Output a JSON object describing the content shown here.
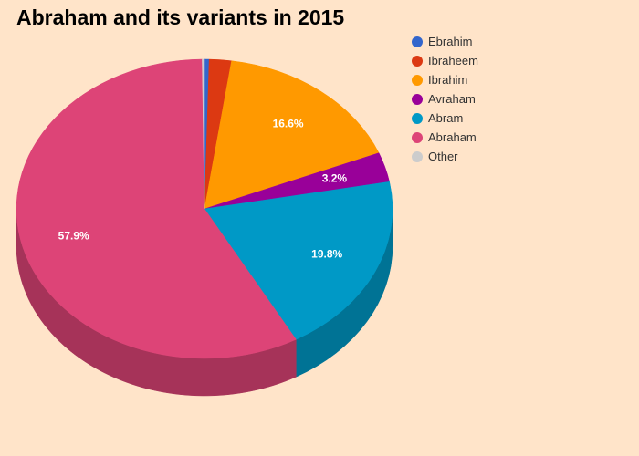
{
  "chart_data": {
    "type": "pie",
    "title": "Abraham and its variants in 2015",
    "legend_position": "top-right",
    "slices": [
      {
        "name": "Ebrahim",
        "value": 0.4,
        "color": "#3366cc"
      },
      {
        "name": "Ibraheem",
        "value": 1.9,
        "color": "#dc3912"
      },
      {
        "name": "Ibrahim",
        "value": 16.6,
        "color": "#ff9900",
        "label": "16.6%"
      },
      {
        "name": "Avraham",
        "value": 3.2,
        "color": "#990099",
        "label": "3.2%"
      },
      {
        "name": "Abram",
        "value": 19.8,
        "color": "#0099c6",
        "label": "19.8%"
      },
      {
        "name": "Abraham",
        "value": 57.9,
        "color": "#dd4477",
        "label": "57.9%"
      },
      {
        "name": "Other",
        "value": 0.2,
        "color": "#cccccc"
      }
    ]
  }
}
